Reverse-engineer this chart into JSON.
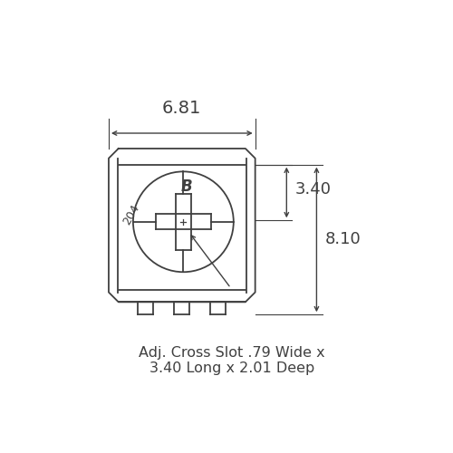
{
  "bg_color": "#ffffff",
  "line_color": "#404040",
  "text_color": "#404040",
  "title_text_line1": "Adj. Cross Slot .79 Wide x",
  "title_text_line2": "3.40 Long x 2.01 Deep",
  "dim_681": "6.81",
  "dim_340": "3.40",
  "dim_810": "8.10",
  "label_204": "204",
  "label_B": "B",
  "fig_width": 5.0,
  "fig_height": 5.0,
  "dpi": 100
}
